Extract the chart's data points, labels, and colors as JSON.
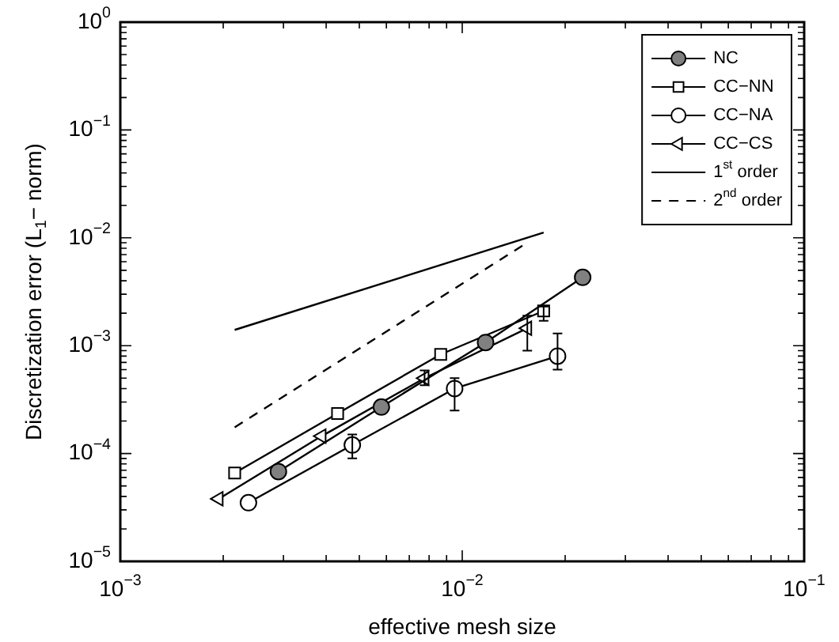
{
  "chart_data": {
    "type": "line",
    "xlabel": "effective mesh size",
    "ylabel": "Discretization error (L$_{1}$− norm)",
    "log": "xy",
    "xlim": [
      0.001,
      0.1
    ],
    "ylim": [
      1e-05,
      1
    ],
    "xticks": [
      {
        "value": 0.001,
        "label": "10$^{−3}$"
      },
      {
        "value": 0.01,
        "label": "10$^{−2}$"
      },
      {
        "value": 0.1,
        "label": "10$^{−1}$"
      }
    ],
    "yticks": [
      {
        "value": 1e-05,
        "label": "10$^{−5}$"
      },
      {
        "value": 0.0001,
        "label": "10$^{−4}$"
      },
      {
        "value": 0.001,
        "label": "10$^{−3}$"
      },
      {
        "value": 0.01,
        "label": "10$^{−2}$"
      },
      {
        "value": 0.1,
        "label": "10$^{−1}$"
      },
      {
        "value": 1,
        "label": "10$^{0}$"
      }
    ],
    "grid": false,
    "legend": "top right",
    "series": [
      {
        "name": "NC",
        "color": "#808080",
        "marker": "circle",
        "line_style": "solid",
        "x": [
          0.0029,
          0.0058,
          0.0117,
          0.0225
        ],
        "values": [
          6.8e-05,
          0.00027,
          0.00107,
          0.0043
        ]
      },
      {
        "name": "CC−NN",
        "color": "#000000",
        "marker": "square",
        "line_style": "solid",
        "x": [
          0.00216,
          0.00432,
          0.00865,
          0.0173
        ],
        "values": [
          6.6e-05,
          0.000235,
          0.00083,
          0.0021
        ],
        "errors": [
          null,
          null,
          null,
          [
            0.0017,
            0.0023
          ]
        ]
      },
      {
        "name": "CC−NA",
        "color": "#000000",
        "marker": "circle",
        "line_style": "solid",
        "x": [
          0.00237,
          0.00477,
          0.0095,
          0.019
        ],
        "values": [
          3.5e-05,
          0.00012,
          0.0004,
          0.0008
        ],
        "errors": [
          null,
          [
            9e-05,
            0.00015
          ],
          [
            0.00025,
            0.0005
          ],
          [
            0.0006,
            0.0013
          ]
        ]
      },
      {
        "name": "CC−CS",
        "color": "#000000",
        "marker": "triangle",
        "line_style": "solid",
        "x": [
          0.00194,
          0.00388,
          0.00776,
          0.0155
        ],
        "values": [
          3.8e-05,
          0.000145,
          0.0005,
          0.00145
        ],
        "errors": [
          null,
          null,
          [
            0.00043,
            0.00059
          ],
          [
            0.0009,
            0.0019
          ]
        ]
      },
      {
        "name": "1$^{st}$ order",
        "color": "#000000",
        "marker": "none",
        "line_style": "solid",
        "x": [
          0.00216,
          0.0173
        ],
        "values": [
          0.0014,
          0.0112
        ]
      },
      {
        "name": "2$^{nd}$ order",
        "color": "#000000",
        "marker": "none",
        "line_style": "dashed",
        "x": [
          0.00216,
          0.0153
        ],
        "values": [
          0.000175,
          0.0088
        ]
      }
    ]
  }
}
